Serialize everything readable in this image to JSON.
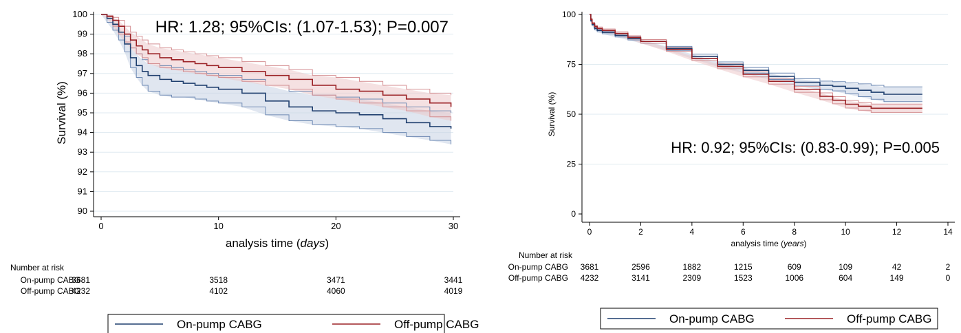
{
  "colors": {
    "on_pump": "#1f3f6e",
    "off_pump": "#9b2226",
    "on_pump_band": "#c7d2e3",
    "off_pump_band": "#ecc9ca",
    "on_pump_band_edge": "#6d89b3",
    "off_pump_band_edge": "#d48e91",
    "grid": "#dfeaf0"
  },
  "risk_table": {
    "heading": "Number at risk",
    "rows": [
      "On-pump CABG",
      "Off-pump CABG"
    ]
  },
  "legend": {
    "items": [
      "On-pump CABG",
      "Off-pump CABG"
    ]
  },
  "chart_data": [
    {
      "type": "line",
      "annotation": "HR: 1.28; 95%CIs: (1.07-1.53); P=0.007",
      "xlabel": "analysis time",
      "xlabel_unit": "days",
      "ylabel": "Survival (%)",
      "xlim": [
        0,
        30
      ],
      "ylim": [
        90,
        100
      ],
      "xticks": [
        0,
        10,
        20,
        30
      ],
      "yticks": [
        90,
        91,
        92,
        93,
        94,
        95,
        96,
        97,
        98,
        99,
        100
      ],
      "grid": true,
      "series": [
        {
          "name": "On-pump CABG",
          "x": [
            0,
            0.5,
            1,
            1.5,
            2,
            2.5,
            3,
            3.5,
            4,
            5,
            6,
            7,
            8,
            9,
            10,
            12,
            14,
            16,
            18,
            20,
            22,
            24,
            26,
            28,
            29.8
          ],
          "y": [
            100,
            99.8,
            99.5,
            99.1,
            98.5,
            97.8,
            97.4,
            97.1,
            96.9,
            96.7,
            96.6,
            96.5,
            96.4,
            96.3,
            96.2,
            96.0,
            95.6,
            95.3,
            95.1,
            95.0,
            94.9,
            94.7,
            94.5,
            94.3,
            94.2
          ],
          "lower": [
            100,
            99.6,
            99.2,
            98.7,
            98.1,
            97.3,
            96.8,
            96.4,
            96.1,
            95.9,
            95.8,
            95.8,
            95.7,
            95.6,
            95.5,
            95.3,
            94.9,
            94.6,
            94.4,
            94.3,
            94.2,
            94.0,
            93.8,
            93.6,
            93.4
          ],
          "upper": [
            100,
            99.9,
            99.7,
            99.4,
            98.9,
            98.3,
            98.0,
            97.7,
            97.5,
            97.4,
            97.3,
            97.2,
            97.1,
            97.0,
            96.9,
            96.7,
            96.4,
            96.1,
            95.9,
            95.8,
            95.7,
            95.5,
            95.3,
            95.1,
            95.0
          ],
          "at_risk": [
            3681,
            3518,
            3471,
            3441
          ]
        },
        {
          "name": "Off-pump CABG",
          "x": [
            0,
            0.5,
            1,
            1.5,
            2,
            2.5,
            3,
            3.5,
            4,
            5,
            6,
            7,
            8,
            9,
            10,
            12,
            14,
            16,
            18,
            20,
            22,
            24,
            26,
            28,
            29.8
          ],
          "y": [
            100,
            99.9,
            99.7,
            99.4,
            99.0,
            98.7,
            98.4,
            98.2,
            98.0,
            97.8,
            97.7,
            97.6,
            97.5,
            97.4,
            97.3,
            97.1,
            96.9,
            96.7,
            96.4,
            96.2,
            96.1,
            95.9,
            95.7,
            95.5,
            95.3
          ],
          "lower": [
            100,
            99.8,
            99.4,
            99.0,
            98.6,
            98.3,
            98.0,
            97.8,
            97.5,
            97.3,
            97.2,
            97.1,
            97.0,
            96.9,
            96.8,
            96.6,
            96.4,
            96.2,
            95.9,
            95.7,
            95.5,
            95.3,
            95.1,
            94.8,
            94.6
          ],
          "upper": [
            100,
            99.95,
            99.85,
            99.7,
            99.4,
            99.1,
            98.9,
            98.7,
            98.5,
            98.3,
            98.2,
            98.1,
            98.0,
            97.9,
            97.8,
            97.6,
            97.4,
            97.2,
            96.9,
            96.8,
            96.6,
            96.4,
            96.2,
            96.0,
            95.9
          ],
          "at_risk": [
            4232,
            4102,
            4060,
            4019
          ]
        }
      ]
    },
    {
      "type": "line",
      "annotation": "HR: 0.92; 95%CIs: (0.83-0.99); P=0.005",
      "xlabel": "analysis time",
      "xlabel_unit": "years",
      "ylabel": "Survival (%)",
      "xlim": [
        0,
        14
      ],
      "ylim": [
        0,
        100
      ],
      "xticks": [
        0,
        2,
        4,
        6,
        8,
        10,
        12,
        14
      ],
      "yticks": [
        0,
        25,
        50,
        75,
        100
      ],
      "grid": true,
      "series": [
        {
          "name": "On-pump CABG",
          "x": [
            0,
            0.05,
            0.1,
            0.2,
            0.3,
            0.5,
            1,
            1.5,
            2,
            3,
            4,
            5,
            6,
            7,
            8,
            9,
            9.5,
            10,
            10.5,
            11,
            11.5,
            12,
            13
          ],
          "y": [
            100,
            97,
            95,
            93,
            92,
            91,
            89.5,
            88,
            86.5,
            83,
            79,
            75,
            72,
            69,
            66,
            64.5,
            64,
            63,
            62,
            61,
            60,
            60,
            60
          ],
          "lower": [
            100,
            96.5,
            94.5,
            92.3,
            91.3,
            90.3,
            88.7,
            87.2,
            85.6,
            82,
            77.9,
            73.8,
            70.6,
            67.4,
            64.2,
            62.4,
            61.7,
            60.3,
            58.8,
            57.5,
            56.3,
            56.3,
            56.3
          ],
          "upper": [
            100,
            97.5,
            95.5,
            93.7,
            92.7,
            91.7,
            90.3,
            88.8,
            87.4,
            84,
            80.1,
            76.2,
            73.4,
            70.6,
            67.8,
            66.6,
            66.3,
            65.7,
            65.2,
            64.5,
            63.7,
            63.7,
            63.7
          ],
          "at_risk": [
            3681,
            2596,
            1882,
            1215,
            609,
            109,
            42,
            2
          ]
        },
        {
          "name": "Off-pump CABG",
          "x": [
            0,
            0.05,
            0.1,
            0.2,
            0.3,
            0.5,
            1,
            1.5,
            2,
            3,
            4,
            5,
            6,
            7,
            8,
            9,
            9.5,
            10,
            10.5,
            11,
            11.5,
            12,
            13
          ],
          "y": [
            100,
            97.5,
            95.5,
            94,
            93,
            92,
            90.5,
            88.5,
            86.5,
            82.5,
            78,
            74,
            70,
            66.5,
            62.5,
            59,
            57,
            55,
            54,
            53,
            53,
            53,
            53
          ],
          "lower": [
            100,
            97,
            95,
            93.4,
            92.3,
            91.3,
            89.7,
            87.7,
            85.6,
            81.5,
            76.9,
            72.8,
            68.7,
            65.1,
            61,
            57.3,
            55.2,
            53.1,
            52,
            50.9,
            50.9,
            50.9,
            50.9
          ],
          "upper": [
            100,
            98,
            96,
            94.6,
            93.7,
            92.7,
            91.3,
            89.3,
            87.4,
            83.5,
            79.1,
            75.2,
            71.3,
            67.9,
            64,
            60.7,
            58.8,
            56.9,
            56,
            55.1,
            55.1,
            55.1,
            55.1
          ],
          "at_risk": [
            4232,
            3141,
            2309,
            1523,
            1006,
            604,
            149,
            0
          ]
        }
      ]
    }
  ]
}
